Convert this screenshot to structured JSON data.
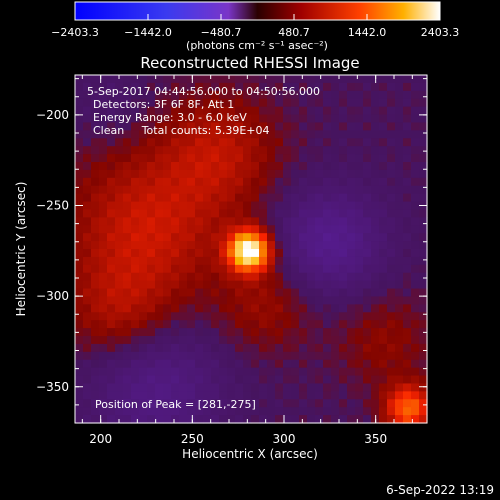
{
  "chart_data": {
    "type": "heatmap",
    "title": "Reconstructed RHESSI Image",
    "xlabel": "Heliocentric X (arcsec)",
    "ylabel": "Heliocentric Y (arcsec)",
    "xlim": [
      186,
      378
    ],
    "ylim": [
      -370,
      -178
    ],
    "xticks": [
      200,
      250,
      300,
      350
    ],
    "yticks": [
      -200,
      -250,
      -300,
      -350
    ],
    "colorbar": {
      "ticks": [
        "-2403.3",
        "-1442.0",
        "-480.7",
        "480.7",
        "1442.0",
        "2403.3"
      ],
      "range": [
        -2403.3,
        2403.3
      ],
      "unit_label": "(photons cm⁻² s⁻¹ asec⁻²)"
    },
    "peak": [
      281,
      -275
    ],
    "sources": [
      {
        "x": 281,
        "y": -275,
        "sigma": 8,
        "amp": 2403.3
      },
      {
        "x": 225,
        "y": -262,
        "sigma": 30,
        "amp": 760
      },
      {
        "x": 265,
        "y": -220,
        "sigma": 22,
        "amp": 600
      },
      {
        "x": 290,
        "y": -305,
        "sigma": 18,
        "amp": 420
      },
      {
        "x": 355,
        "y": -325,
        "sigma": 18,
        "amp": 360
      },
      {
        "x": 210,
        "y": -310,
        "sigma": 20,
        "amp": 500
      },
      {
        "x": 325,
        "y": -270,
        "sigma": 20,
        "amp": -800
      },
      {
        "x": 230,
        "y": -350,
        "sigma": 25,
        "amp": -650
      },
      {
        "x": 205,
        "y": -195,
        "sigma": 14,
        "amp": -200
      },
      {
        "x": 368,
        "y": -362,
        "sigma": 9,
        "amp": 1400
      }
    ]
  },
  "annotations": {
    "line1": "5-Sep-2017 04:44:56.000 to 04:50:56.000",
    "line2": "Detectors: 3F 6F 8F, Att 1",
    "line3": "Energy Range: 3.0 - 6.0 keV",
    "line4": "Clean     Total counts: 5.39E+04",
    "peak_text": "Position of Peak = [281,-275]"
  },
  "footer_date": "6-Sep-2022 13:19"
}
